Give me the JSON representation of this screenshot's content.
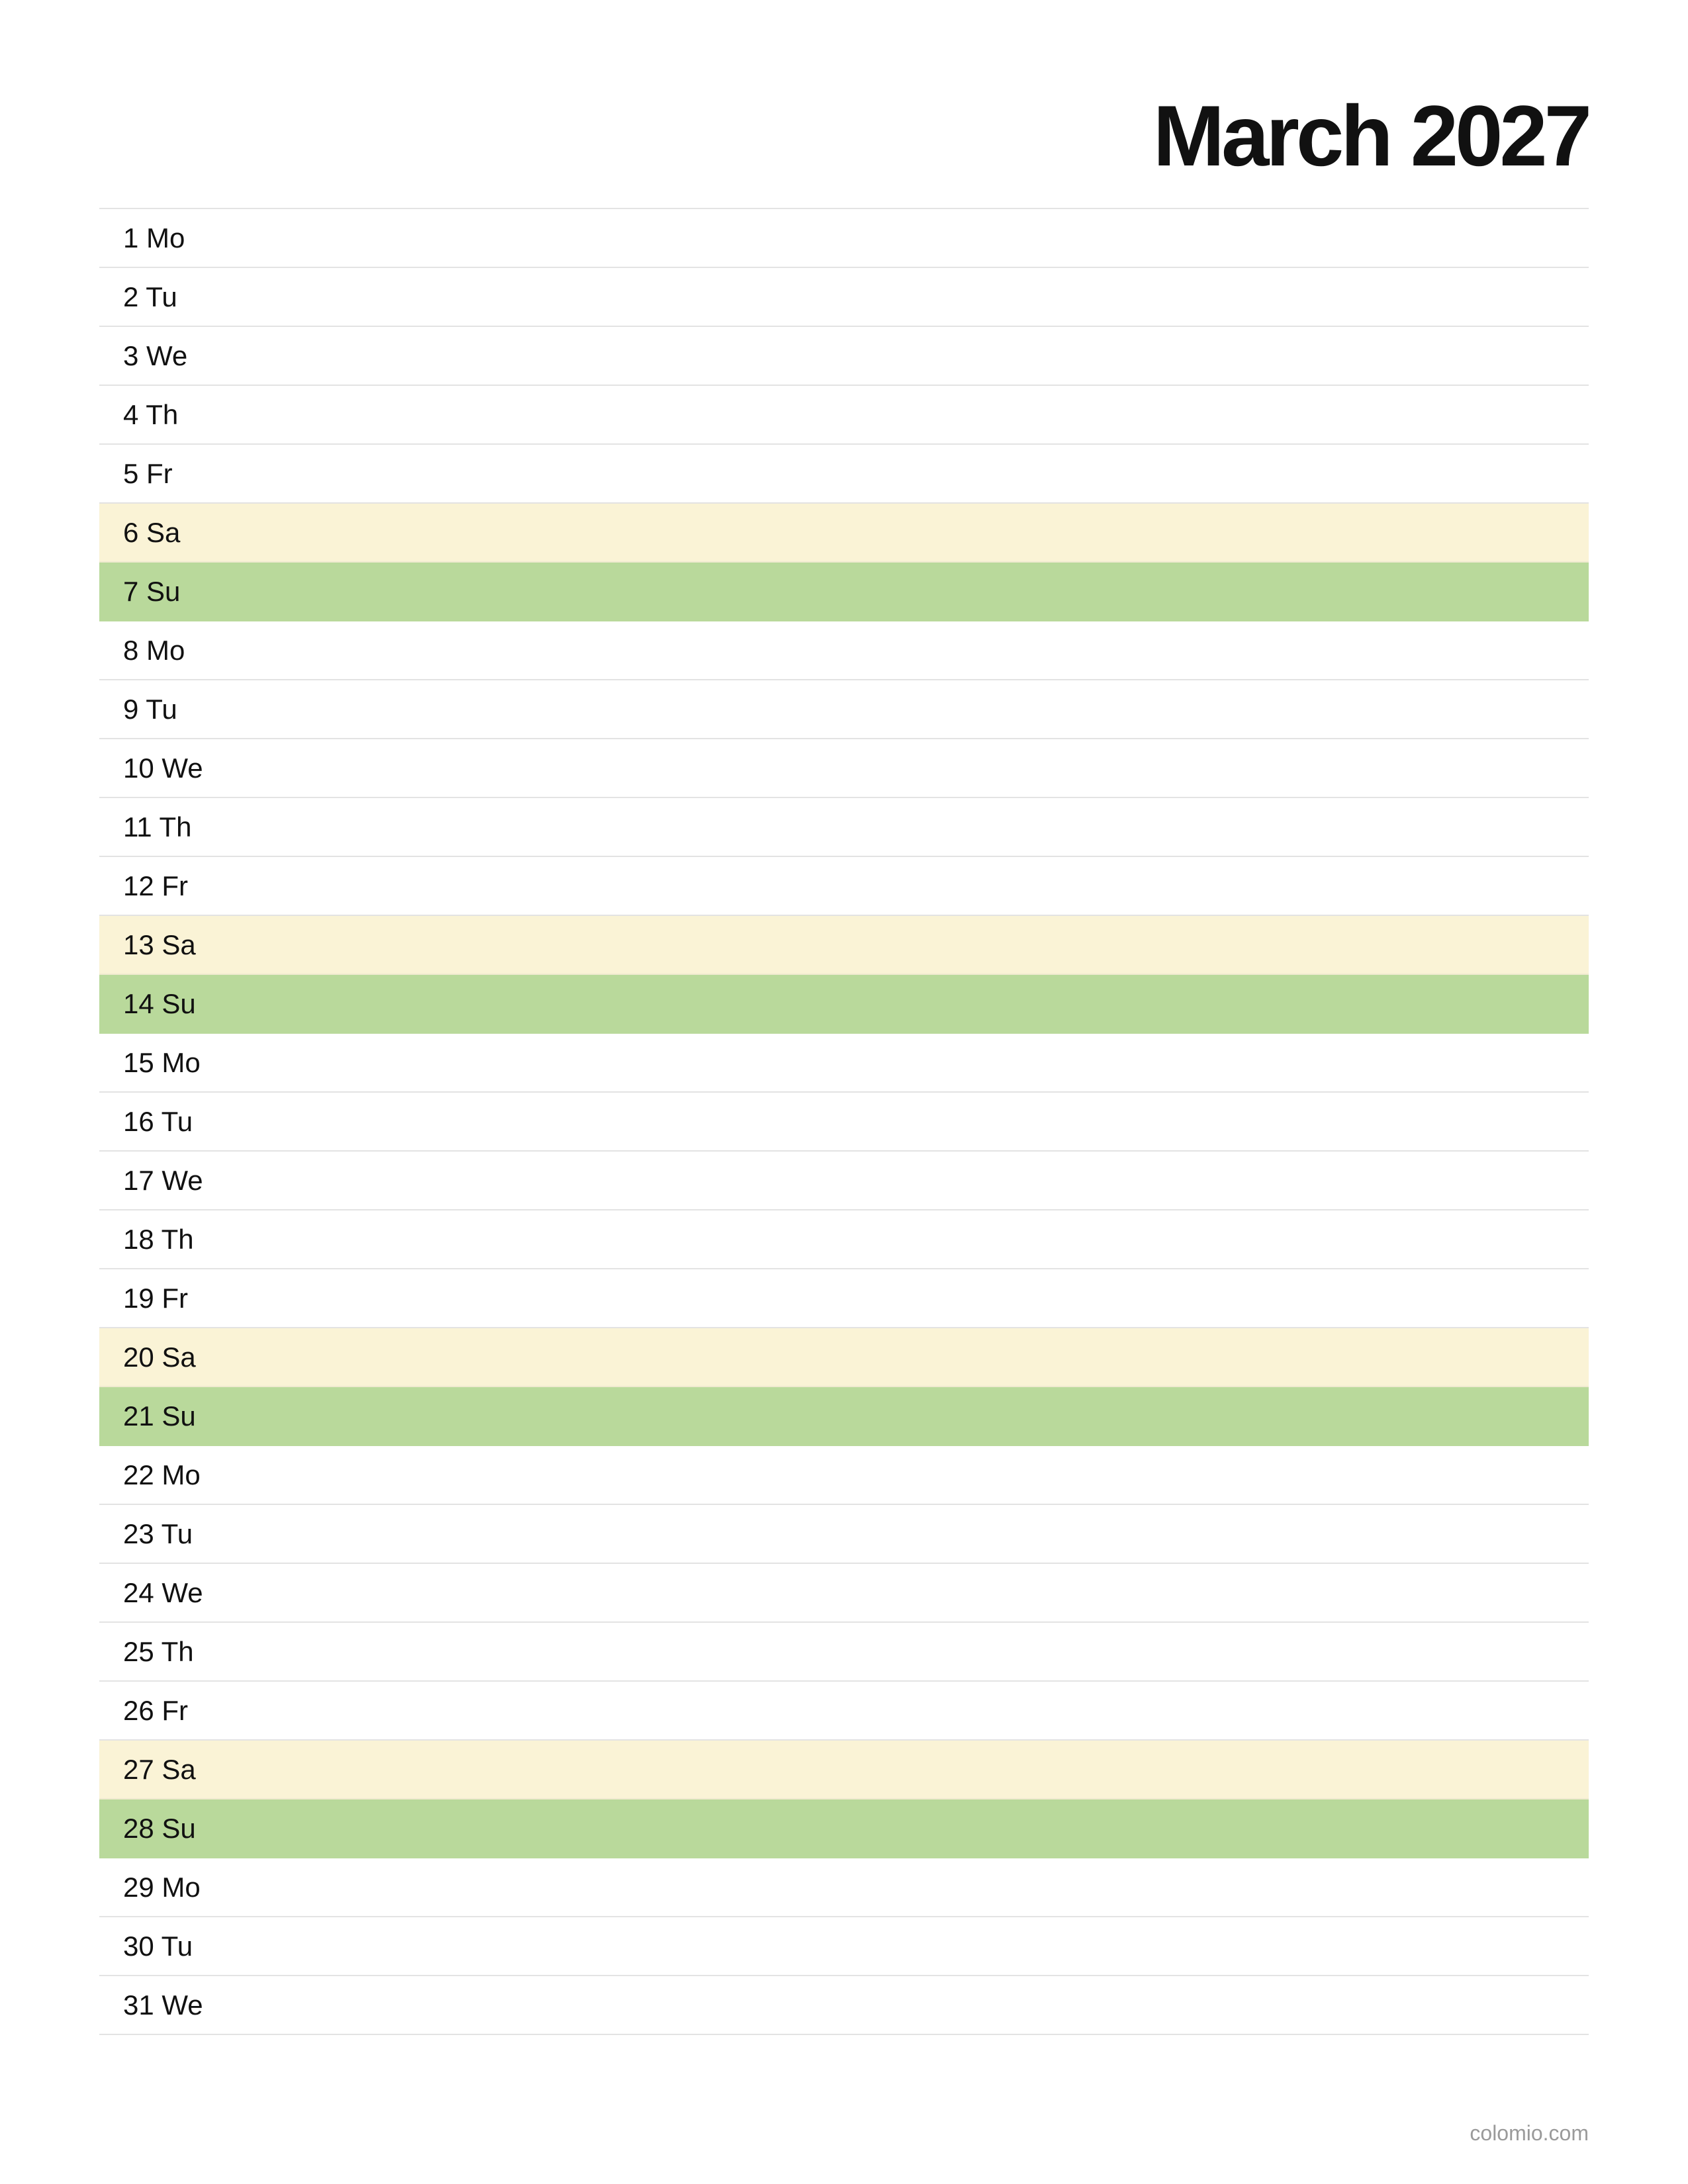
{
  "title": "March 2027",
  "footer": "colomio.com",
  "colors": {
    "saturday_bg": "#faf3d6",
    "sunday_bg": "#b9d99b",
    "divider": "#e3e3e3"
  },
  "days": [
    {
      "label": "1 Mo",
      "type": "weekday"
    },
    {
      "label": "2 Tu",
      "type": "weekday"
    },
    {
      "label": "3 We",
      "type": "weekday"
    },
    {
      "label": "4 Th",
      "type": "weekday"
    },
    {
      "label": "5 Fr",
      "type": "weekday"
    },
    {
      "label": "6 Sa",
      "type": "saturday"
    },
    {
      "label": "7 Su",
      "type": "sunday"
    },
    {
      "label": "8 Mo",
      "type": "weekday"
    },
    {
      "label": "9 Tu",
      "type": "weekday"
    },
    {
      "label": "10 We",
      "type": "weekday"
    },
    {
      "label": "11 Th",
      "type": "weekday"
    },
    {
      "label": "12 Fr",
      "type": "weekday"
    },
    {
      "label": "13 Sa",
      "type": "saturday"
    },
    {
      "label": "14 Su",
      "type": "sunday"
    },
    {
      "label": "15 Mo",
      "type": "weekday"
    },
    {
      "label": "16 Tu",
      "type": "weekday"
    },
    {
      "label": "17 We",
      "type": "weekday"
    },
    {
      "label": "18 Th",
      "type": "weekday"
    },
    {
      "label": "19 Fr",
      "type": "weekday"
    },
    {
      "label": "20 Sa",
      "type": "saturday"
    },
    {
      "label": "21 Su",
      "type": "sunday"
    },
    {
      "label": "22 Mo",
      "type": "weekday"
    },
    {
      "label": "23 Tu",
      "type": "weekday"
    },
    {
      "label": "24 We",
      "type": "weekday"
    },
    {
      "label": "25 Th",
      "type": "weekday"
    },
    {
      "label": "26 Fr",
      "type": "weekday"
    },
    {
      "label": "27 Sa",
      "type": "saturday"
    },
    {
      "label": "28 Su",
      "type": "sunday"
    },
    {
      "label": "29 Mo",
      "type": "weekday"
    },
    {
      "label": "30 Tu",
      "type": "weekday"
    },
    {
      "label": "31 We",
      "type": "weekday"
    }
  ]
}
